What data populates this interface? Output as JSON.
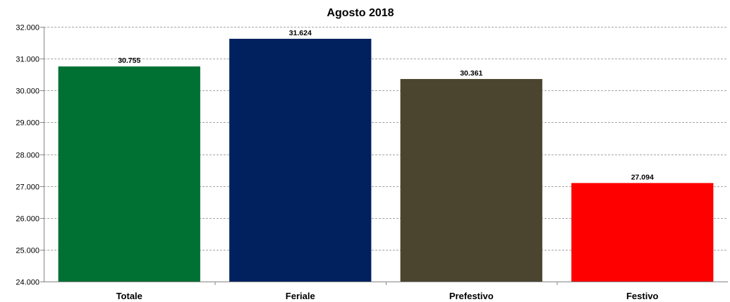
{
  "chart_data": {
    "type": "bar",
    "title": "Agosto 2018",
    "categories": [
      "Totale",
      "Feriale",
      "Prefestivo",
      "Festivo"
    ],
    "values": [
      30755,
      31624,
      30361,
      27094
    ],
    "data_labels": [
      "30.755",
      "31.624",
      "30.361",
      "27.094"
    ],
    "colors": [
      "#007033",
      "#00215e",
      "#4b4530",
      "#ff0000"
    ],
    "xlabel": "",
    "ylabel": "",
    "ylim": [
      24000,
      32000
    ],
    "yticks": [
      24000,
      25000,
      26000,
      27000,
      28000,
      29000,
      30000,
      31000,
      32000
    ],
    "ytick_labels": [
      "24.000",
      "25.000",
      "26.000",
      "27.000",
      "28.000",
      "29.000",
      "30.000",
      "31.000",
      "32.000"
    ],
    "grid": true,
    "legend": "none"
  }
}
